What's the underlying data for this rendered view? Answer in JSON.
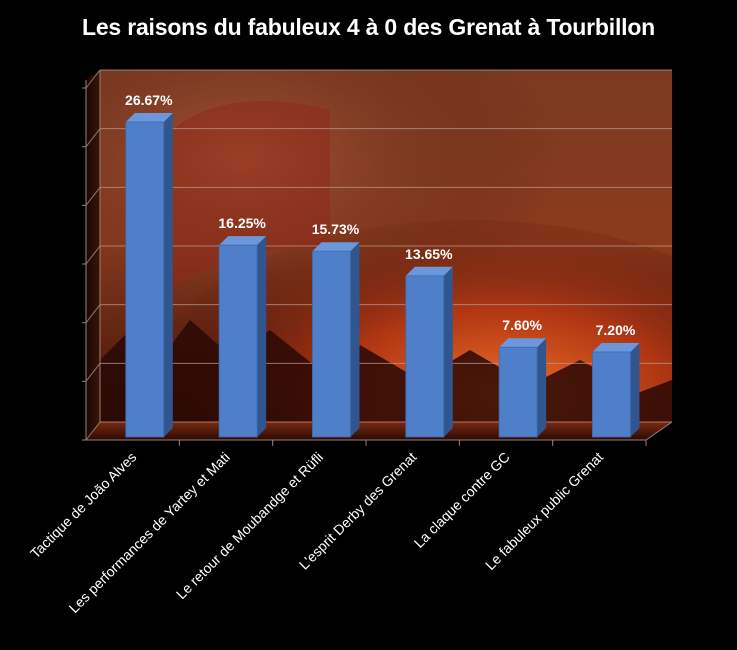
{
  "chart_data": {
    "type": "bar",
    "title": "Les raisons du fabuleux 4 à 0 des Grenat à Tourbillon",
    "categories": [
      "Tactique de João Alves",
      "Les performances de Yartey et Mati",
      "Le retour de Moubandge et Rüfli",
      "L'esprit Derby des Grenat",
      "La claque contre GC",
      "Le fabuleux public Grenat"
    ],
    "values": [
      26.67,
      16.25,
      15.73,
      13.65,
      7.6,
      7.2
    ],
    "data_labels": [
      "26.67%",
      "16.25%",
      "15.73%",
      "13.65%",
      "7.60%",
      "7.20%"
    ],
    "ylim": [
      0,
      30
    ],
    "grid": true,
    "legend": "none",
    "xlabel": "",
    "ylabel": ""
  },
  "colors": {
    "bar_front": "#4f7fc9",
    "bar_side": "#31568f",
    "bar_top": "#6b97dc",
    "text": "#ffffff",
    "background": "#000000"
  }
}
